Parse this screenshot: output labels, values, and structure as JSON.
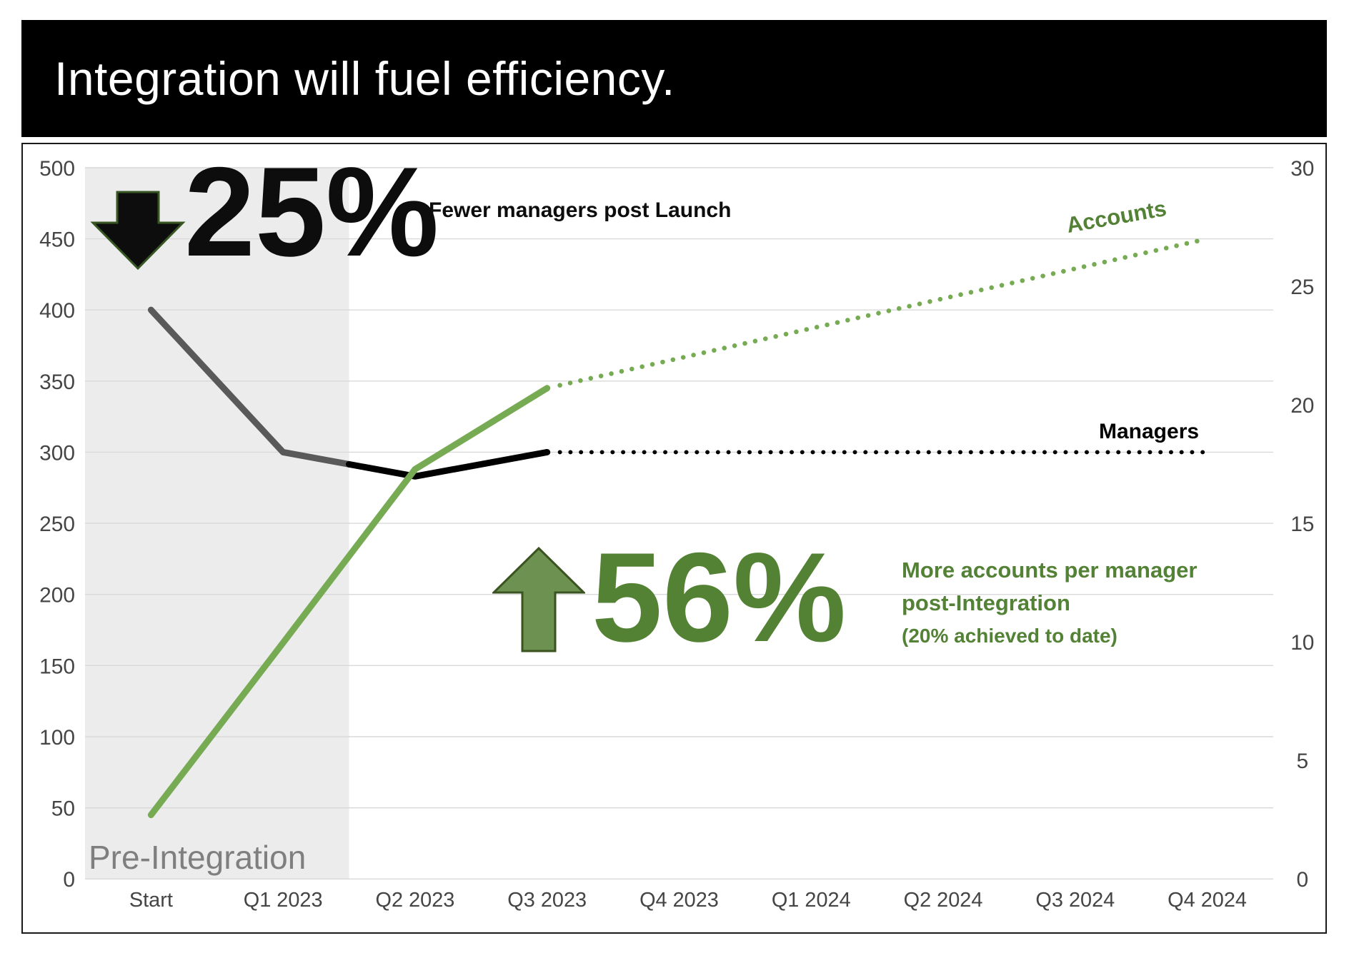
{
  "title": "Integration will fuel efficiency.",
  "colors": {
    "banner_bg": "#000000",
    "banner_text": "#ffffff",
    "figure_border": "#1a1a1a",
    "shaded_region_fill": "#ECECEC",
    "gridline": "#D9D9D9",
    "tick_text": "#454545",
    "managers_pre_integration_line": "#595959",
    "managers_line": "#000000",
    "accounts_line": "#76AB53",
    "accounts_label_text": "#538135",
    "green_annotation_text": "#538135",
    "big_56_text": "#548235",
    "up_arrow_fill": "#6C9150",
    "up_arrow_stroke": "#3A5320",
    "down_arrow_fill": "#0d0d0d",
    "down_arrow_stroke": "#375623",
    "pre_integration_text": "#7f7f7f",
    "black_annotation_text": "#0d0d0d"
  },
  "annotations": {
    "managers_change": {
      "arrow_direction": "down",
      "value": "25%",
      "caption": "Fewer managers post Launch"
    },
    "accounts_change": {
      "arrow_direction": "up",
      "value": "56%",
      "caption_lines": [
        "More accounts per manager",
        "post-Integration",
        "(20% achieved to date)"
      ]
    },
    "pre_integration": "Pre-Integration"
  },
  "chart_data": {
    "type": "line",
    "title": "",
    "categories": [
      "Start",
      "Q1 2023",
      "Q2 2023",
      "Q3 2023",
      "Q4 2023",
      "Q1 2024",
      "Q2 2024",
      "Q3 2024",
      "Q4 2024"
    ],
    "left_axis": {
      "min": 0,
      "max": 500,
      "step": 50
    },
    "right_axis": {
      "min": 0,
      "max": 30,
      "step": 5
    },
    "grid": "horizontal",
    "legend": "inline-labels",
    "series": [
      {
        "name": "Managers",
        "axis": "left",
        "values": [
          400,
          300,
          283,
          300,
          300,
          300,
          300,
          300,
          300
        ],
        "solid_until_index": 3,
        "dotted_after_index_3": true,
        "color_pre_integration": "#595959",
        "color": "#000000"
      },
      {
        "name": "Accounts",
        "axis": "right",
        "values": [
          2.7,
          10,
          17.3,
          20.7,
          22,
          23.2,
          24.5,
          25.7,
          27
        ],
        "left_axis_equivalents": [
          45,
          166,
          288,
          345,
          366,
          387,
          408,
          429,
          450
        ],
        "solid_until_index": 3,
        "dotted_after_index_3": true,
        "color": "#76AB53"
      }
    ],
    "shaded_region": {
      "label": "Pre-Integration",
      "covers": "Start through midpoint between Q1 2023 and Q2 2023",
      "fill": "#ECECEC"
    }
  }
}
